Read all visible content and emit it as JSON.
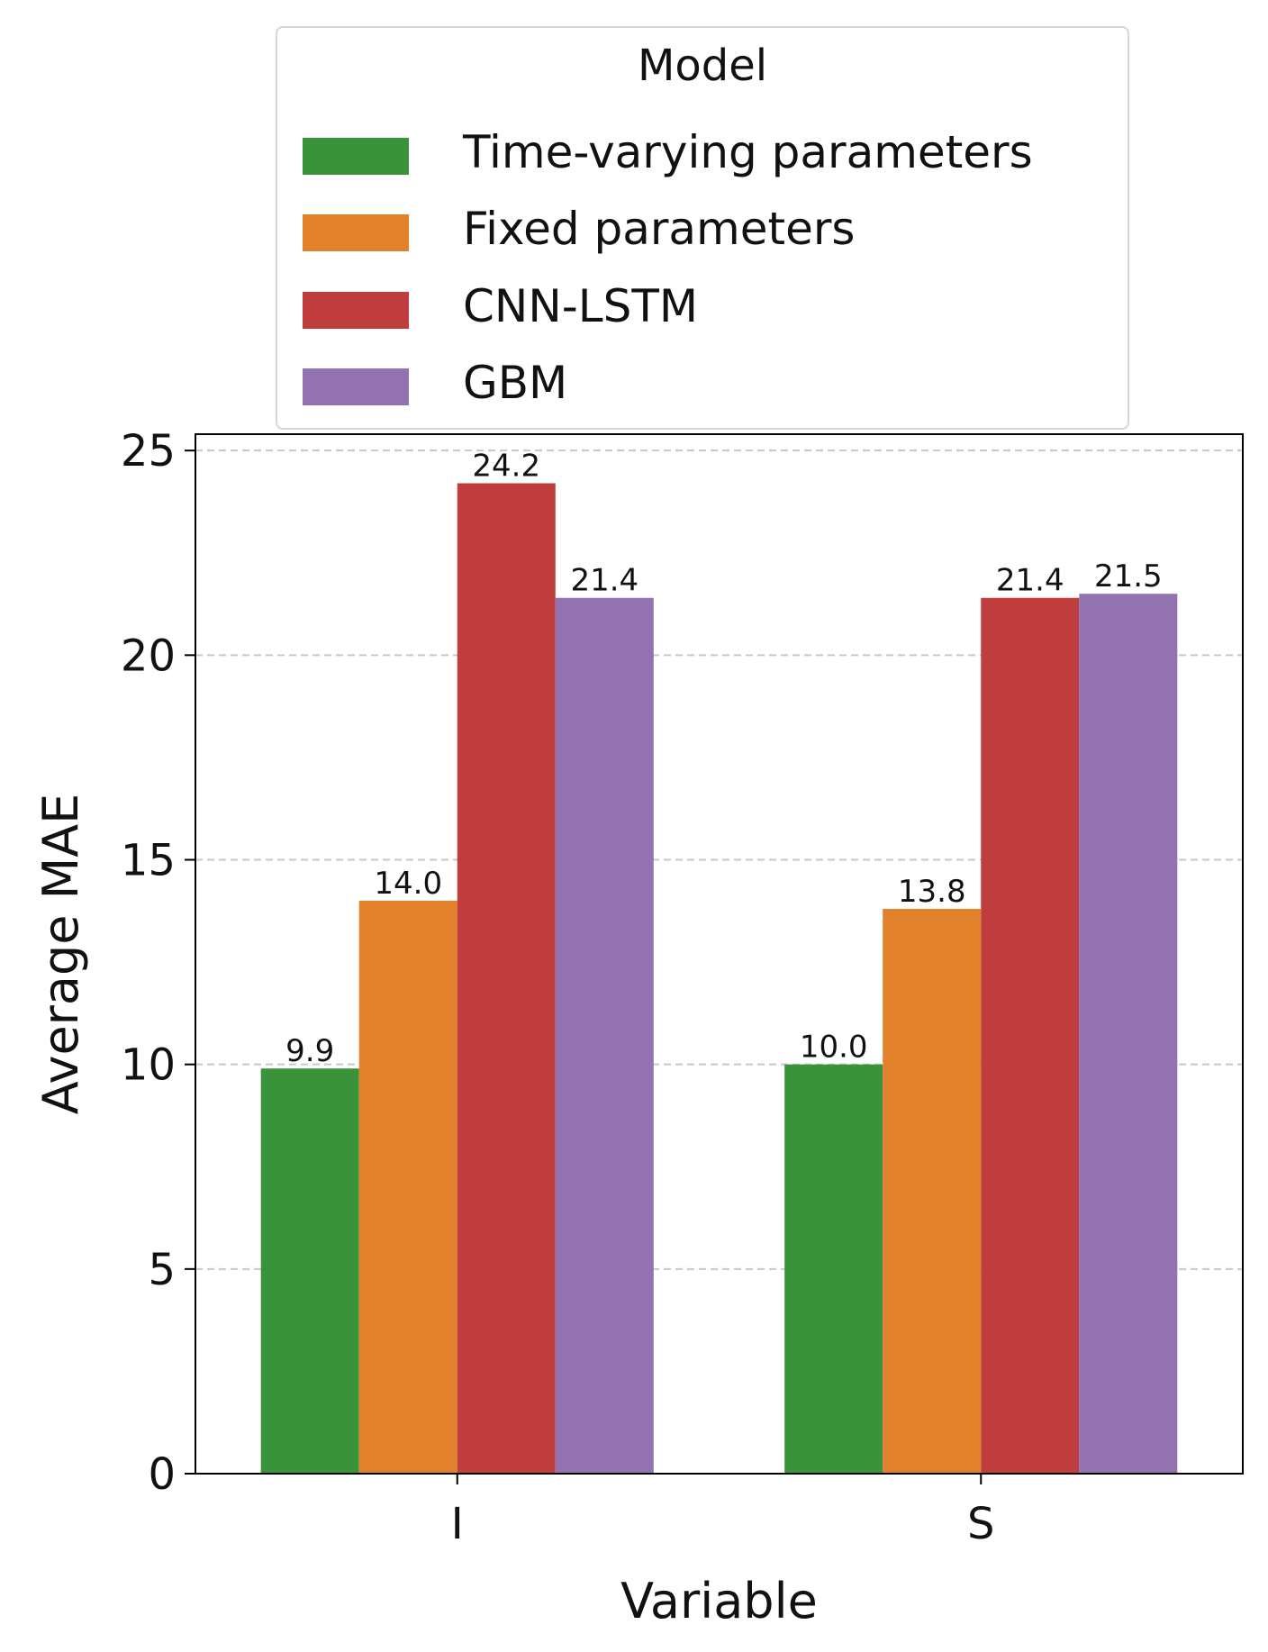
{
  "chart_data": {
    "type": "bar",
    "xlabel": "Variable",
    "ylabel": "Average MAE",
    "ylim": [
      0,
      25.4
    ],
    "yticks": [
      0,
      5,
      10,
      15,
      20,
      25
    ],
    "grid": "y-dashed",
    "categories": [
      "I",
      "S"
    ],
    "legend": {
      "title": "Model",
      "placement": "top-center-outside"
    },
    "series": [
      {
        "name": "Time-varying parameters",
        "color": "#3a923a",
        "values": [
          9.9,
          10.0
        ],
        "labels": [
          "9.9",
          "10.0"
        ]
      },
      {
        "name": "Fixed parameters",
        "color": "#e1812c",
        "values": [
          14.0,
          13.8
        ],
        "labels": [
          "14.0",
          "13.8"
        ]
      },
      {
        "name": "CNN-LSTM",
        "color": "#c03d3e",
        "values": [
          24.2,
          21.4
        ],
        "labels": [
          "24.2",
          "21.4"
        ]
      },
      {
        "name": "GBM",
        "color": "#9372b2",
        "values": [
          21.4,
          21.5
        ],
        "labels": [
          "21.4",
          "21.5"
        ]
      }
    ]
  }
}
